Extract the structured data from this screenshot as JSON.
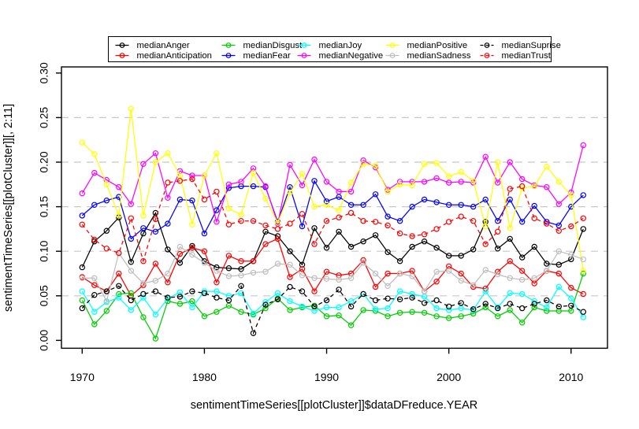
{
  "chart_data": {
    "type": "line",
    "title": "",
    "xlabel": "sentimentTimeSeries[[plotCluster]]$dataDFreduce.YEAR",
    "ylabel": "sentimentTimeSeries[[plotCluster]][, 2:11]",
    "x_ticks": [
      1970,
      1980,
      1990,
      2000,
      2010
    ],
    "y_ticks": [
      0.0,
      0.05,
      0.1,
      0.15,
      0.2,
      0.25,
      0.3
    ],
    "y_tick_labels": [
      "0.00",
      "0.05",
      "0.10",
      "0.15",
      "0.20",
      "0.25",
      "0.30"
    ],
    "xlim": [
      1968.3,
      2012.7
    ],
    "ylim": [
      0.0,
      0.3
    ],
    "grid_y": [
      0.05,
      0.1,
      0.15,
      0.2,
      0.25
    ],
    "grid_color": "#c8c8c8",
    "axis_color": "#000000",
    "legend_position": "top",
    "legend_columns": 5,
    "marker": "open-circle",
    "x": [
      1970,
      1971,
      1972,
      1973,
      1974,
      1975,
      1976,
      1977,
      1978,
      1979,
      1980,
      1981,
      1982,
      1983,
      1984,
      1985,
      1986,
      1987,
      1988,
      1989,
      1990,
      1991,
      1992,
      1993,
      1994,
      1995,
      1996,
      1997,
      1998,
      1999,
      2000,
      2001,
      2002,
      2003,
      2004,
      2005,
      2006,
      2007,
      2008,
      2009,
      2010,
      2011
    ],
    "series": [
      {
        "name": "medianAnger",
        "color": "#000000",
        "dashed": false,
        "values": [
          0.082,
          0.111,
          0.123,
          0.138,
          0.088,
          0.12,
          0.143,
          0.102,
          0.087,
          0.106,
          0.089,
          0.082,
          0.081,
          0.08,
          0.089,
          0.122,
          0.117,
          0.1,
          0.085,
          0.126,
          0.104,
          0.122,
          0.105,
          0.111,
          0.118,
          0.099,
          0.089,
          0.105,
          0.111,
          0.104,
          0.095,
          0.095,
          0.102,
          0.133,
          0.103,
          0.114,
          0.093,
          0.105,
          0.086,
          0.085,
          0.091,
          0.125
        ]
      },
      {
        "name": "medianAnticipation",
        "color": "#ff0000",
        "dashed": false,
        "values": [
          0.071,
          0.062,
          0.055,
          0.075,
          0.05,
          0.062,
          0.086,
          0.065,
          0.097,
          0.104,
          0.1,
          0.065,
          0.095,
          0.089,
          0.089,
          0.108,
          0.114,
          0.071,
          0.08,
          0.055,
          0.077,
          0.073,
          0.075,
          0.09,
          0.06,
          0.075,
          0.075,
          0.078,
          0.055,
          0.066,
          0.083,
          0.075,
          0.06,
          0.058,
          0.077,
          0.089,
          0.078,
          0.064,
          0.078,
          0.075,
          0.059,
          0.052
        ]
      },
      {
        "name": "medianDisgust",
        "color": "#00cd00",
        "dashed": false,
        "values": [
          0.045,
          0.018,
          0.033,
          0.052,
          0.053,
          0.026,
          0.002,
          0.044,
          0.041,
          0.044,
          0.027,
          0.032,
          0.039,
          0.032,
          0.029,
          0.036,
          0.047,
          0.034,
          0.037,
          0.039,
          0.027,
          0.028,
          0.017,
          0.034,
          0.033,
          0.027,
          0.031,
          0.032,
          0.031,
          0.027,
          0.025,
          0.027,
          0.03,
          0.037,
          0.027,
          0.034,
          0.02,
          0.037,
          0.033,
          0.033,
          0.033,
          0.075
        ]
      },
      {
        "name": "medianFear",
        "color": "#0000ff",
        "dashed": false,
        "values": [
          0.14,
          0.152,
          0.157,
          0.161,
          0.114,
          0.126,
          0.122,
          0.131,
          0.158,
          0.157,
          0.12,
          0.146,
          0.171,
          0.173,
          0.173,
          0.172,
          0.133,
          0.172,
          0.128,
          0.179,
          0.156,
          0.161,
          0.152,
          0.152,
          0.164,
          0.139,
          0.134,
          0.15,
          0.158,
          0.155,
          0.152,
          0.152,
          0.15,
          0.158,
          0.134,
          0.158,
          0.133,
          0.151,
          0.133,
          0.129,
          0.15,
          0.163
        ]
      },
      {
        "name": "medianJoy",
        "color": "#00ffff",
        "dashed": false,
        "values": [
          0.055,
          0.032,
          0.043,
          0.048,
          0.034,
          0.048,
          0.029,
          0.047,
          0.054,
          0.037,
          0.055,
          0.055,
          0.05,
          0.053,
          0.03,
          0.043,
          0.053,
          0.044,
          0.038,
          0.033,
          0.037,
          0.037,
          0.044,
          0.052,
          0.035,
          0.036,
          0.055,
          0.052,
          0.049,
          0.036,
          0.034,
          0.036,
          0.034,
          0.055,
          0.037,
          0.053,
          0.052,
          0.044,
          0.037,
          0.06,
          0.047,
          0.026
        ]
      },
      {
        "name": "medianNegative",
        "color": "#ff00ff",
        "dashed": false,
        "values": [
          0.165,
          0.188,
          0.18,
          0.172,
          0.153,
          0.198,
          0.21,
          0.16,
          0.19,
          0.185,
          0.185,
          0.133,
          0.175,
          0.178,
          0.193,
          0.173,
          0.131,
          0.197,
          0.174,
          0.203,
          0.178,
          0.167,
          0.167,
          0.202,
          0.194,
          0.169,
          0.178,
          0.178,
          0.178,
          0.182,
          0.177,
          0.178,
          0.177,
          0.206,
          0.177,
          0.2,
          0.181,
          0.174,
          0.172,
          0.153,
          0.166,
          0.219
        ]
      },
      {
        "name": "medianPositive",
        "color": "#ffff00",
        "dashed": false,
        "values": [
          0.222,
          0.209,
          0.175,
          0.14,
          0.26,
          0.14,
          0.2,
          0.21,
          0.185,
          0.13,
          0.185,
          0.21,
          0.148,
          0.141,
          0.188,
          0.159,
          0.132,
          0.166,
          0.187,
          0.15,
          0.152,
          0.146,
          0.177,
          0.198,
          0.196,
          0.167,
          0.175,
          0.174,
          0.198,
          0.199,
          0.184,
          0.189,
          0.179,
          0.128,
          0.2,
          0.126,
          0.171,
          0.173,
          0.195,
          0.178,
          0.163,
          0.078
        ]
      },
      {
        "name": "medianSadness",
        "color": "#bebebe",
        "dashed": false,
        "values": [
          0.07,
          0.07,
          0.044,
          0.098,
          0.078,
          0.064,
          0.067,
          0.075,
          0.105,
          0.096,
          0.087,
          0.078,
          0.072,
          0.073,
          0.076,
          0.077,
          0.086,
          0.085,
          0.073,
          0.07,
          0.069,
          0.068,
          0.07,
          0.087,
          0.075,
          0.061,
          0.075,
          0.072,
          0.055,
          0.077,
          0.078,
          0.067,
          0.062,
          0.079,
          0.074,
          0.07,
          0.068,
          0.07,
          0.078,
          0.1,
          0.096,
          0.091
        ]
      },
      {
        "name": "medianSuprise",
        "color": "#000000",
        "dashed": true,
        "values": [
          0.036,
          0.051,
          0.055,
          0.061,
          0.045,
          0.052,
          0.055,
          0.048,
          0.049,
          0.055,
          0.053,
          0.048,
          0.045,
          0.061,
          0.008,
          0.04,
          0.046,
          0.06,
          0.055,
          0.038,
          0.045,
          0.057,
          0.038,
          0.052,
          0.045,
          0.047,
          0.046,
          0.048,
          0.042,
          0.045,
          0.038,
          0.042,
          0.035,
          0.041,
          0.036,
          0.041,
          0.036,
          0.041,
          0.045,
          0.038,
          0.039,
          0.032
        ]
      },
      {
        "name": "medianTrust",
        "color": "#ff0000",
        "dashed": true,
        "values": [
          0.13,
          0.113,
          0.103,
          0.098,
          0.137,
          0.089,
          0.136,
          0.177,
          0.179,
          0.181,
          0.158,
          0.167,
          0.13,
          0.134,
          0.134,
          0.129,
          0.125,
          0.131,
          0.142,
          0.108,
          0.134,
          0.138,
          0.143,
          0.134,
          0.133,
          0.129,
          0.12,
          0.117,
          0.119,
          0.125,
          0.133,
          0.139,
          0.134,
          0.108,
          0.122,
          0.17,
          0.173,
          0.137,
          0.131,
          0.123,
          0.128,
          0.137
        ]
      }
    ]
  }
}
